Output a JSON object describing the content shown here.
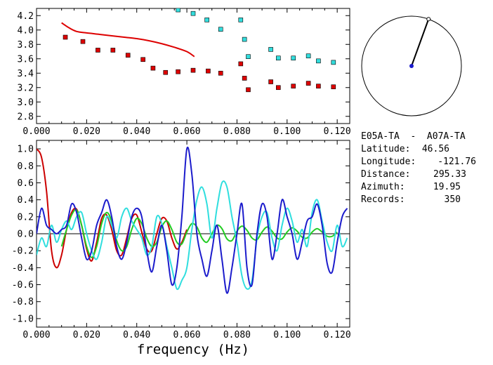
{
  "chart_data": [
    {
      "type": "scatter",
      "title": "",
      "xlabel": "",
      "ylabel": "",
      "xlim": [
        0.0,
        0.125
      ],
      "ylim": [
        2.7,
        4.3
      ],
      "xticks": [
        "0.000",
        "0.020",
        "0.040",
        "0.060",
        "0.080",
        "0.100",
        "0.120"
      ],
      "yticks": [
        "2.8",
        "3.0",
        "3.2",
        "3.4",
        "3.6",
        "3.8",
        "4.0",
        "4.2"
      ],
      "grid": false,
      "series": [
        {
          "kind": "line",
          "color": "#dd0000",
          "x": [
            0.01,
            0.013,
            0.016,
            0.02,
            0.025,
            0.03,
            0.035,
            0.04,
            0.045,
            0.05,
            0.055,
            0.06,
            0.063
          ],
          "y": [
            4.1,
            4.03,
            3.98,
            3.96,
            3.94,
            3.92,
            3.9,
            3.88,
            3.85,
            3.81,
            3.76,
            3.7,
            3.63
          ]
        },
        {
          "kind": "points",
          "color": "#dd0000",
          "x": [
            0.0115,
            0.0185,
            0.0245,
            0.0305,
            0.0365,
            0.0425,
            0.0465,
            0.0515,
            0.0565,
            0.0625,
            0.0685,
            0.0735,
            0.0815,
            0.083,
            0.0845,
            0.0935,
            0.0965,
            0.1025,
            0.1085,
            0.1125,
            0.1185
          ],
          "y": [
            3.9,
            3.84,
            3.72,
            3.72,
            3.65,
            3.59,
            3.47,
            3.41,
            3.42,
            3.44,
            3.43,
            3.4,
            3.53,
            3.33,
            3.17,
            3.28,
            3.2,
            3.22,
            3.26,
            3.22,
            3.21
          ]
        },
        {
          "kind": "points",
          "color": "#33dddd",
          "x": [
            0.0565,
            0.0625,
            0.068,
            0.0735,
            0.0815,
            0.083,
            0.0845,
            0.0935,
            0.0965,
            0.1025,
            0.1085,
            0.1125,
            0.1185
          ],
          "y": [
            4.28,
            4.23,
            4.14,
            4.01,
            4.14,
            3.87,
            3.63,
            3.73,
            3.61,
            3.61,
            3.64,
            3.57,
            3.55
          ]
        }
      ]
    },
    {
      "type": "line",
      "title": "",
      "xlabel": "frequency (Hz)",
      "ylabel": "",
      "xlim": [
        0.0,
        0.125
      ],
      "ylim": [
        -1.1,
        1.1
      ],
      "xticks": [
        "0.000",
        "0.020",
        "0.040",
        "0.060",
        "0.080",
        "0.100",
        "0.120"
      ],
      "yticks": [
        "-1.0",
        "-0.8",
        "-0.6",
        "-0.4",
        "-0.2",
        "0.0",
        "0.2",
        "0.4",
        "0.6",
        "0.8",
        "1.0"
      ],
      "zero_line": true,
      "grid": false,
      "series": [
        {
          "color": "#cc0000",
          "x": [
            0.0,
            0.002,
            0.004,
            0.006,
            0.008,
            0.01,
            0.012,
            0.014,
            0.016,
            0.018,
            0.02,
            0.022,
            0.024,
            0.026,
            0.028,
            0.03,
            0.032,
            0.034,
            0.036,
            0.038,
            0.04,
            0.042,
            0.044,
            0.046,
            0.048,
            0.05,
            0.052,
            0.054,
            0.056,
            0.058,
            0.06
          ],
          "y": [
            1.0,
            0.9,
            0.5,
            -0.2,
            -0.4,
            -0.25,
            0.05,
            0.25,
            0.29,
            0.1,
            -0.18,
            -0.32,
            -0.1,
            0.18,
            0.22,
            0.05,
            -0.2,
            -0.25,
            -0.05,
            0.18,
            0.22,
            0.02,
            -0.18,
            -0.2,
            0.0,
            0.18,
            0.15,
            -0.05,
            -0.18,
            -0.1,
            0.05
          ]
        },
        {
          "color": "#22cc22",
          "x": [
            0.01,
            0.012,
            0.014,
            0.016,
            0.018,
            0.02,
            0.022,
            0.024,
            0.026,
            0.028,
            0.03,
            0.032,
            0.034,
            0.036,
            0.038,
            0.04,
            0.042,
            0.044,
            0.046,
            0.048,
            0.05,
            0.052,
            0.054,
            0.056,
            0.058,
            0.06,
            0.062,
            0.064,
            0.066,
            0.068,
            0.07,
            0.072,
            0.074,
            0.076,
            0.078,
            0.08,
            0.082,
            0.084,
            0.086,
            0.088,
            0.09,
            0.092,
            0.094,
            0.096,
            0.098,
            0.1,
            0.102,
            0.104,
            0.106,
            0.108,
            0.11,
            0.112,
            0.114,
            0.116,
            0.118,
            0.12
          ],
          "y": [
            -0.15,
            0.05,
            0.22,
            0.28,
            0.1,
            -0.15,
            -0.28,
            -0.15,
            0.12,
            0.25,
            0.15,
            -0.08,
            -0.2,
            -0.15,
            0.05,
            0.18,
            0.12,
            -0.05,
            -0.15,
            -0.1,
            0.08,
            0.15,
            0.05,
            -0.1,
            -0.12,
            0.02,
            0.12,
            0.08,
            -0.05,
            -0.1,
            0.0,
            0.1,
            0.06,
            -0.06,
            -0.08,
            0.03,
            0.09,
            0.04,
            -0.05,
            -0.07,
            0.02,
            0.08,
            0.03,
            -0.05,
            -0.06,
            0.02,
            0.07,
            0.03,
            -0.04,
            -0.05,
            0.02,
            0.06,
            0.02,
            -0.03,
            -0.03,
            0.02
          ]
        },
        {
          "color": "#2fdede",
          "x": [
            0.0,
            0.002,
            0.004,
            0.006,
            0.008,
            0.01,
            0.012,
            0.014,
            0.016,
            0.018,
            0.02,
            0.022,
            0.024,
            0.026,
            0.028,
            0.03,
            0.032,
            0.034,
            0.036,
            0.038,
            0.04,
            0.042,
            0.044,
            0.046,
            0.048,
            0.05,
            0.052,
            0.054,
            0.056,
            0.058,
            0.06,
            0.062,
            0.064,
            0.066,
            0.068,
            0.07,
            0.072,
            0.074,
            0.076,
            0.078,
            0.08,
            0.082,
            0.084,
            0.086,
            0.088,
            0.09,
            0.092,
            0.094,
            0.096,
            0.098,
            0.1,
            0.102,
            0.104,
            0.106,
            0.108,
            0.11,
            0.112,
            0.114,
            0.116,
            0.118,
            0.12,
            0.122,
            0.124
          ],
          "y": [
            -0.25,
            -0.05,
            -0.15,
            0.1,
            -0.1,
            0.05,
            0.15,
            0.05,
            0.2,
            0.25,
            0.0,
            -0.2,
            -0.3,
            -0.1,
            0.2,
            0.1,
            -0.05,
            0.2,
            0.3,
            0.15,
            0.05,
            -0.05,
            -0.25,
            -0.15,
            0.2,
            0.12,
            -0.15,
            -0.4,
            -0.65,
            -0.55,
            -0.4,
            0.05,
            0.4,
            0.55,
            0.35,
            -0.05,
            0.3,
            0.6,
            0.55,
            0.2,
            -0.1,
            -0.5,
            -0.65,
            -0.55,
            -0.05,
            0.2,
            0.25,
            -0.05,
            -0.2,
            0.1,
            0.3,
            0.15,
            -0.1,
            0.05,
            -0.15,
            0.25,
            0.4,
            0.15,
            -0.1,
            -0.2,
            0.1,
            -0.15,
            -0.05
          ]
        },
        {
          "color": "#1c1ccc",
          "x": [
            0.0,
            0.002,
            0.004,
            0.006,
            0.008,
            0.01,
            0.012,
            0.014,
            0.016,
            0.018,
            0.02,
            0.022,
            0.024,
            0.026,
            0.028,
            0.03,
            0.032,
            0.034,
            0.036,
            0.038,
            0.04,
            0.042,
            0.044,
            0.046,
            0.048,
            0.05,
            0.052,
            0.054,
            0.056,
            0.058,
            0.06,
            0.062,
            0.064,
            0.066,
            0.068,
            0.07,
            0.072,
            0.074,
            0.076,
            0.078,
            0.08,
            0.082,
            0.084,
            0.086,
            0.088,
            0.09,
            0.092,
            0.094,
            0.096,
            0.098,
            0.1,
            0.102,
            0.104,
            0.106,
            0.108,
            0.11,
            0.112,
            0.114,
            0.116,
            0.118,
            0.12,
            0.122,
            0.124
          ],
          "y": [
            0.0,
            0.3,
            0.1,
            0.05,
            0.0,
            0.05,
            0.1,
            0.35,
            0.25,
            -0.05,
            -0.3,
            -0.2,
            0.1,
            0.25,
            0.4,
            0.2,
            -0.15,
            -0.3,
            -0.1,
            0.2,
            0.3,
            0.2,
            -0.2,
            -0.45,
            -0.15,
            0.1,
            -0.2,
            -0.6,
            -0.4,
            0.2,
            1.0,
            0.7,
            0.0,
            -0.3,
            -0.5,
            -0.2,
            0.1,
            -0.3,
            -0.7,
            -0.4,
            0.0,
            0.35,
            -0.4,
            -0.6,
            0.0,
            0.35,
            0.2,
            -0.3,
            0.0,
            0.4,
            0.2,
            0.0,
            -0.3,
            -0.1,
            0.15,
            0.2,
            0.35,
            0.1,
            -0.35,
            -0.45,
            -0.1,
            0.2,
            0.3
          ]
        }
      ]
    }
  ],
  "info": {
    "station_pair": "E05A-TA  -  A07A-TA",
    "latitude_label": "Latitude:",
    "latitude_value": "46.56",
    "longitude_label": "Longitude:",
    "longitude_value": "-121.76",
    "distance_label": "Distance:",
    "distance_value": "295.33",
    "azimuth_label": "Azimuth:",
    "azimuth_value": "19.95",
    "records_label": "Records:",
    "records_value": "350"
  },
  "compass": {
    "azimuth_deg": 19.95,
    "needle_color": "#000000",
    "center_color": "#1c1ccc"
  }
}
